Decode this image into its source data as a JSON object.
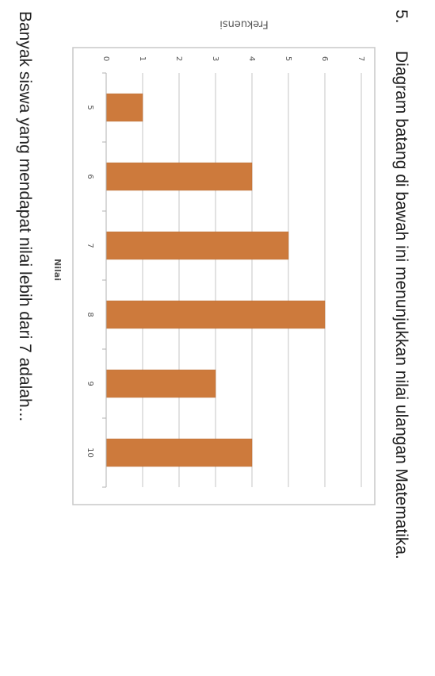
{
  "question": {
    "number": "5.",
    "text": "Diagram batang di bawah ini menunjukkan nilai ulangan Matematika.",
    "prompt": "Banyak siswa yang mendapat nilai lebih dari 7 adalah..."
  },
  "chart_data": {
    "type": "bar",
    "orientation": "horizontal",
    "categories": [
      "5",
      "6",
      "7",
      "8",
      "9",
      "10"
    ],
    "values": [
      1,
      4,
      5,
      6,
      3,
      4
    ],
    "xlabel": "Nilai",
    "ylabel": "Frekuensi",
    "ylim": [
      0,
      7
    ],
    "yticks": [
      "0",
      "1",
      "2",
      "3",
      "4",
      "5",
      "6",
      "7"
    ],
    "grid": true,
    "bar_color": "#cd7a3c"
  }
}
